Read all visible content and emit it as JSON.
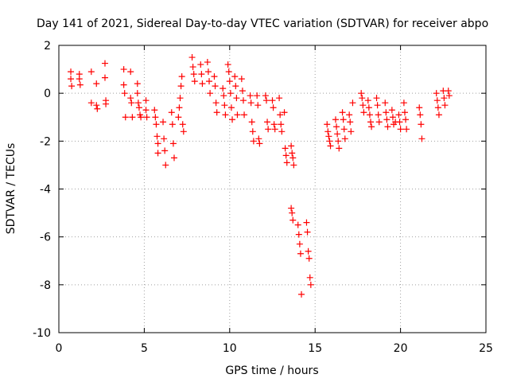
{
  "chart_data": {
    "type": "scatter",
    "title": "Day 141 of 2021, Sidereal Day-to-day VTEC variation (SDTVAR) for receiver abpo",
    "xlabel": "GPS time / hours",
    "ylabel": "SDTVAR / TECUs",
    "xlim": [
      0,
      25
    ],
    "ylim": [
      -10,
      2
    ],
    "xticks": [
      0,
      5,
      10,
      15,
      20,
      25
    ],
    "yticks": [
      -10,
      -8,
      -6,
      -4,
      -2,
      0,
      2
    ],
    "grid": true,
    "marker": "plus",
    "color": "#ff0000",
    "series": [
      {
        "name": "SDTVAR",
        "points": [
          [
            0.7,
            0.9
          ],
          [
            0.7,
            0.6
          ],
          [
            0.75,
            0.3
          ],
          [
            1.2,
            0.8
          ],
          [
            1.2,
            0.6
          ],
          [
            1.25,
            0.35
          ],
          [
            1.9,
            0.9
          ],
          [
            1.9,
            -0.4
          ],
          [
            2.2,
            0.4
          ],
          [
            2.2,
            -0.5
          ],
          [
            2.25,
            -0.65
          ],
          [
            2.7,
            1.25
          ],
          [
            2.7,
            0.65
          ],
          [
            2.75,
            -0.3
          ],
          [
            2.75,
            -0.45
          ],
          [
            3.8,
            1.0
          ],
          [
            3.8,
            0.35
          ],
          [
            3.85,
            0.0
          ],
          [
            3.9,
            -1.0
          ],
          [
            4.2,
            0.9
          ],
          [
            4.2,
            -0.2
          ],
          [
            4.25,
            -0.4
          ],
          [
            4.3,
            -1.0
          ],
          [
            4.6,
            0.4
          ],
          [
            4.6,
            0.0
          ],
          [
            4.65,
            -0.4
          ],
          [
            4.7,
            -0.6
          ],
          [
            4.75,
            -0.9
          ],
          [
            4.8,
            -1.0
          ],
          [
            5.1,
            -0.3
          ],
          [
            5.1,
            -0.7
          ],
          [
            5.15,
            -1.0
          ],
          [
            5.6,
            -0.7
          ],
          [
            5.65,
            -1.0
          ],
          [
            5.7,
            -1.3
          ],
          [
            5.75,
            -1.8
          ],
          [
            5.8,
            -2.1
          ],
          [
            5.8,
            -2.5
          ],
          [
            6.1,
            -1.2
          ],
          [
            6.15,
            -1.9
          ],
          [
            6.2,
            -2.4
          ],
          [
            6.25,
            -3.0
          ],
          [
            6.6,
            -0.8
          ],
          [
            6.65,
            -1.3
          ],
          [
            6.7,
            -2.1
          ],
          [
            6.75,
            -2.7
          ],
          [
            7.0,
            -1.0
          ],
          [
            7.05,
            -0.6
          ],
          [
            7.1,
            -0.2
          ],
          [
            7.15,
            0.3
          ],
          [
            7.2,
            0.7
          ],
          [
            7.25,
            -1.3
          ],
          [
            7.3,
            -1.6
          ],
          [
            7.8,
            1.5
          ],
          [
            7.85,
            1.1
          ],
          [
            7.9,
            0.8
          ],
          [
            7.95,
            0.5
          ],
          [
            8.3,
            1.2
          ],
          [
            8.35,
            0.8
          ],
          [
            8.4,
            0.4
          ],
          [
            8.7,
            1.3
          ],
          [
            8.75,
            0.9
          ],
          [
            8.8,
            0.5
          ],
          [
            8.85,
            0.0
          ],
          [
            9.1,
            0.7
          ],
          [
            9.15,
            0.3
          ],
          [
            9.2,
            -0.4
          ],
          [
            9.25,
            -0.8
          ],
          [
            9.6,
            0.2
          ],
          [
            9.65,
            -0.1
          ],
          [
            9.7,
            -0.5
          ],
          [
            9.75,
            -0.9
          ],
          [
            9.9,
            1.2
          ],
          [
            9.95,
            0.9
          ],
          [
            10.0,
            0.5
          ],
          [
            10.05,
            0.0
          ],
          [
            10.1,
            -0.6
          ],
          [
            10.15,
            -1.1
          ],
          [
            10.3,
            0.7
          ],
          [
            10.35,
            0.3
          ],
          [
            10.4,
            -0.2
          ],
          [
            10.45,
            -0.9
          ],
          [
            10.7,
            0.6
          ],
          [
            10.75,
            0.1
          ],
          [
            10.8,
            -0.3
          ],
          [
            10.85,
            -0.9
          ],
          [
            11.2,
            -0.1
          ],
          [
            11.25,
            -0.4
          ],
          [
            11.3,
            -1.2
          ],
          [
            11.35,
            -1.6
          ],
          [
            11.4,
            -2.0
          ],
          [
            11.6,
            -0.1
          ],
          [
            11.65,
            -0.5
          ],
          [
            11.7,
            -1.9
          ],
          [
            11.75,
            -2.1
          ],
          [
            12.1,
            -0.1
          ],
          [
            12.15,
            -0.3
          ],
          [
            12.2,
            -1.2
          ],
          [
            12.25,
            -1.5
          ],
          [
            12.5,
            -0.3
          ],
          [
            12.55,
            -0.6
          ],
          [
            12.6,
            -1.3
          ],
          [
            12.65,
            -1.5
          ],
          [
            12.9,
            -0.2
          ],
          [
            12.95,
            -0.9
          ],
          [
            13.0,
            -1.3
          ],
          [
            13.05,
            -1.6
          ],
          [
            13.2,
            -0.8
          ],
          [
            13.25,
            -2.3
          ],
          [
            13.3,
            -2.6
          ],
          [
            13.35,
            -2.9
          ],
          [
            13.6,
            -2.2
          ],
          [
            13.65,
            -2.5
          ],
          [
            13.7,
            -2.7
          ],
          [
            13.75,
            -3.0
          ],
          [
            13.6,
            -4.8
          ],
          [
            13.65,
            -5.0
          ],
          [
            13.7,
            -5.3
          ],
          [
            14.0,
            -5.5
          ],
          [
            14.05,
            -5.9
          ],
          [
            14.1,
            -6.3
          ],
          [
            14.15,
            -6.7
          ],
          [
            14.2,
            -8.4
          ],
          [
            14.5,
            -5.4
          ],
          [
            14.55,
            -5.8
          ],
          [
            14.6,
            -6.6
          ],
          [
            14.65,
            -6.9
          ],
          [
            14.7,
            -7.7
          ],
          [
            14.75,
            -8.0
          ],
          [
            15.7,
            -1.3
          ],
          [
            15.75,
            -1.6
          ],
          [
            15.8,
            -1.8
          ],
          [
            15.85,
            -2.0
          ],
          [
            15.9,
            -2.2
          ],
          [
            16.2,
            -1.1
          ],
          [
            16.25,
            -1.4
          ],
          [
            16.3,
            -1.7
          ],
          [
            16.35,
            -2.0
          ],
          [
            16.4,
            -2.3
          ],
          [
            16.6,
            -0.8
          ],
          [
            16.65,
            -1.1
          ],
          [
            16.7,
            -1.5
          ],
          [
            16.75,
            -1.9
          ],
          [
            17.0,
            -0.9
          ],
          [
            17.05,
            -1.2
          ],
          [
            17.1,
            -1.6
          ],
          [
            17.2,
            -0.4
          ],
          [
            17.7,
            0.0
          ],
          [
            17.75,
            -0.2
          ],
          [
            17.8,
            -0.5
          ],
          [
            17.85,
            -0.8
          ],
          [
            18.1,
            -0.3
          ],
          [
            18.15,
            -0.6
          ],
          [
            18.2,
            -0.9
          ],
          [
            18.25,
            -1.2
          ],
          [
            18.3,
            -1.4
          ],
          [
            18.6,
            -0.2
          ],
          [
            18.65,
            -0.5
          ],
          [
            18.7,
            -0.9
          ],
          [
            18.75,
            -1.2
          ],
          [
            19.1,
            -0.4
          ],
          [
            19.15,
            -0.8
          ],
          [
            19.2,
            -1.1
          ],
          [
            19.25,
            -1.4
          ],
          [
            19.5,
            -0.7
          ],
          [
            19.55,
            -1.0
          ],
          [
            19.6,
            -1.3
          ],
          [
            19.7,
            -1.2
          ],
          [
            19.9,
            -0.9
          ],
          [
            19.95,
            -1.2
          ],
          [
            20.0,
            -1.5
          ],
          [
            20.2,
            -0.4
          ],
          [
            20.25,
            -0.8
          ],
          [
            20.3,
            -1.1
          ],
          [
            20.35,
            -1.5
          ],
          [
            21.1,
            -0.6
          ],
          [
            21.15,
            -0.9
          ],
          [
            21.2,
            -1.3
          ],
          [
            21.25,
            -1.9
          ],
          [
            22.1,
            0.0
          ],
          [
            22.15,
            -0.3
          ],
          [
            22.2,
            -0.6
          ],
          [
            22.25,
            -0.9
          ],
          [
            22.5,
            0.1
          ],
          [
            22.55,
            -0.2
          ],
          [
            22.6,
            -0.5
          ],
          [
            22.8,
            0.1
          ],
          [
            22.85,
            -0.1
          ]
        ]
      }
    ]
  }
}
